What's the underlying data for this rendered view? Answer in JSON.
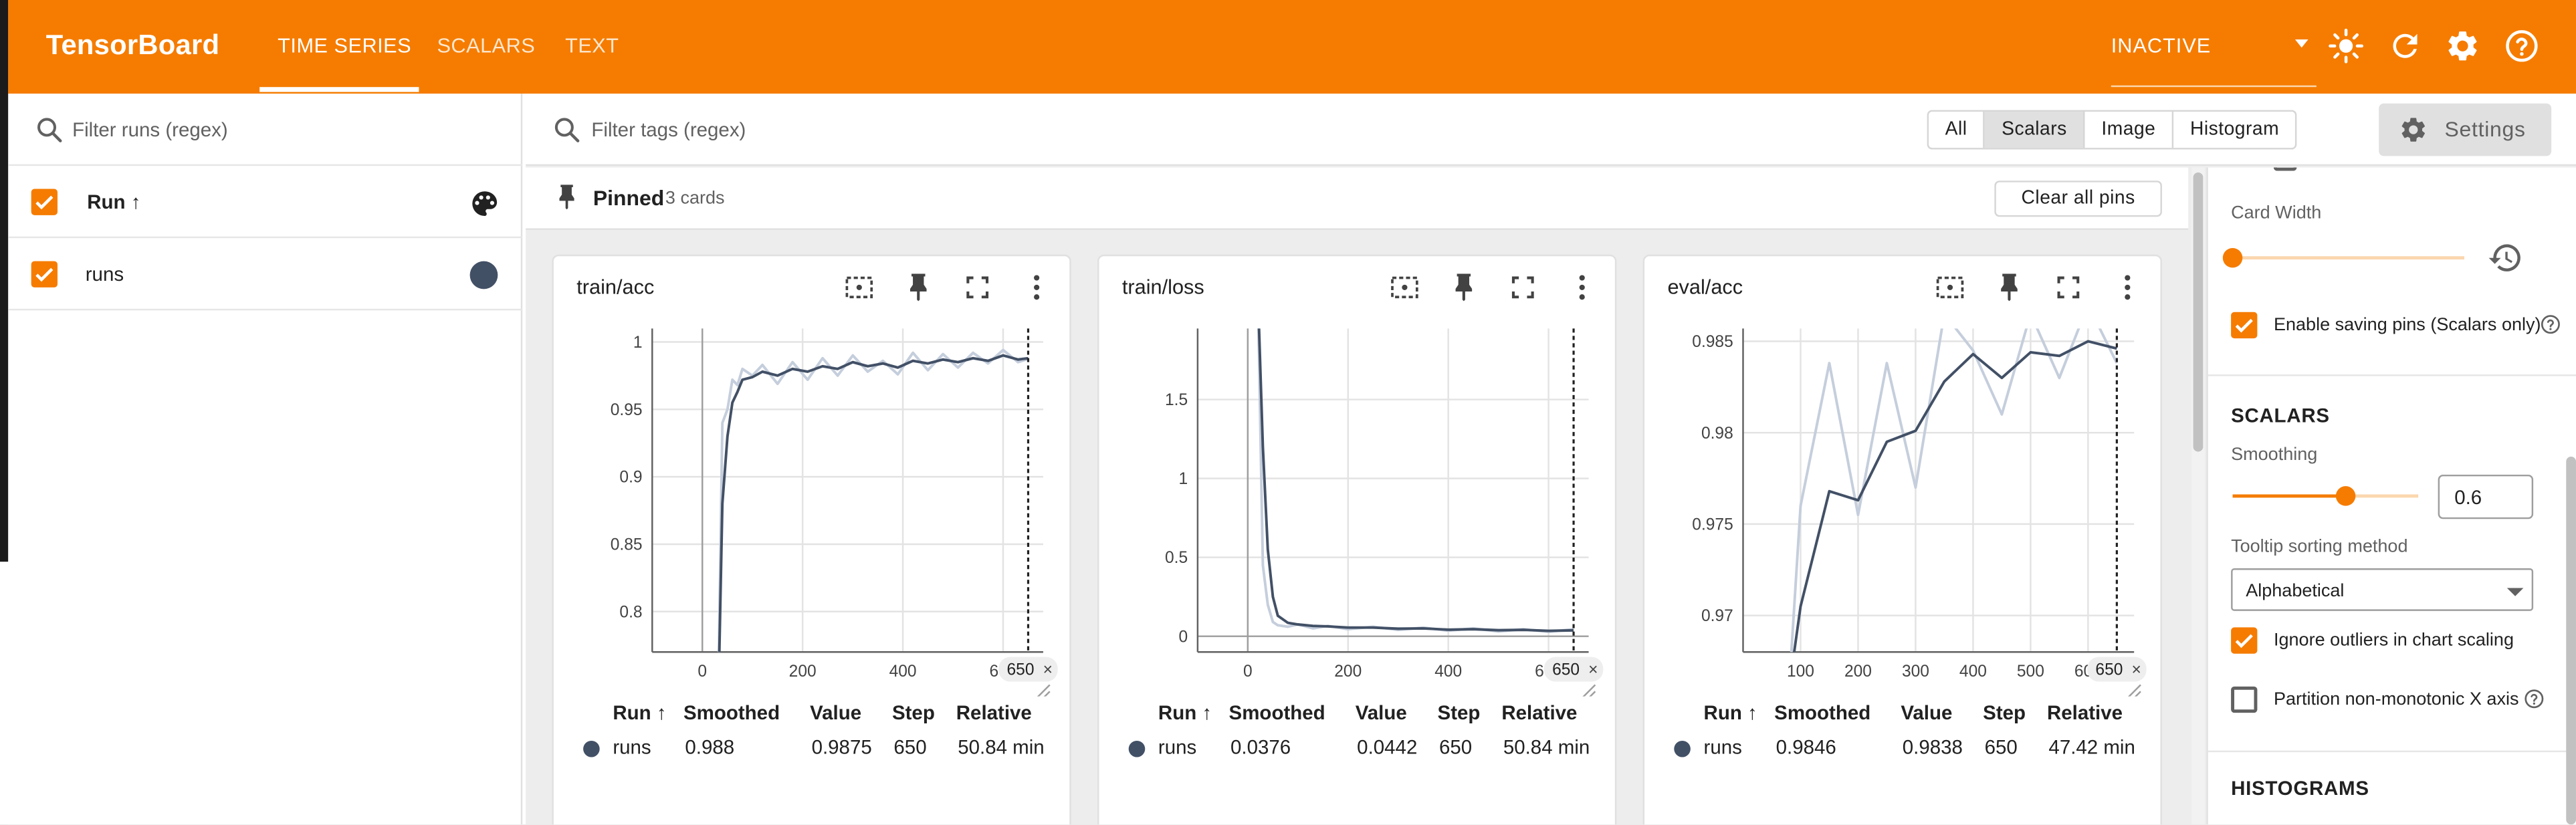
{
  "app": {
    "title": "TensorBoard"
  },
  "nav": {
    "tabs": [
      "TIME SERIES",
      "SCALARS",
      "TEXT"
    ],
    "active": "TIME SERIES"
  },
  "header": {
    "status_label": "INACTIVE"
  },
  "sidebar": {
    "filter_placeholder": "Filter runs (regex)",
    "header_label": "Run ↑",
    "runs": [
      {
        "name": "runs",
        "color": "#425066",
        "checked": true
      }
    ]
  },
  "toolbar": {
    "tag_filter_placeholder": "Filter tags (regex)",
    "type_filters": [
      "All",
      "Scalars",
      "Image",
      "Histogram"
    ],
    "type_selected": "Scalars",
    "settings_label": "Settings"
  },
  "pinned": {
    "label": "Pinned",
    "count_label": "3 cards",
    "clear_label": "Clear all pins"
  },
  "table_headers": {
    "run": "Run ↑",
    "smoothed": "Smoothed",
    "value": "Value",
    "step": "Step",
    "relative": "Relative"
  },
  "cards": [
    {
      "title": "train/acc",
      "row": {
        "run": "runs",
        "smoothed": "0.988",
        "value": "0.9875",
        "step": "650",
        "relative": "50.84 min"
      }
    },
    {
      "title": "train/loss",
      "row": {
        "run": "runs",
        "smoothed": "0.0376",
        "value": "0.0442",
        "step": "650",
        "relative": "50.84 min"
      }
    },
    {
      "title": "eval/acc",
      "row": {
        "run": "runs",
        "smoothed": "0.9846",
        "value": "0.9838",
        "step": "650",
        "relative": "47.42 min"
      }
    }
  ],
  "chart_data": [
    {
      "type": "line",
      "title": "train/acc",
      "x_ticks": [
        "0",
        "200",
        "400",
        "600"
      ],
      "y_ticks": [
        "0.8",
        "0.85",
        "0.9",
        "0.95",
        "1"
      ],
      "xlim": [
        -100,
        680
      ],
      "ylim": [
        0.77,
        1.01
      ],
      "cursor_step": "650",
      "series": [
        {
          "name": "runs (raw)",
          "x": [
            30,
            40,
            50,
            60,
            70,
            80,
            100,
            120,
            150,
            180,
            210,
            240,
            270,
            300,
            330,
            360,
            390,
            420,
            450,
            480,
            510,
            540,
            570,
            600,
            630,
            650
          ],
          "values": [
            0.7,
            0.94,
            0.95,
            0.972,
            0.968,
            0.98,
            0.975,
            0.983,
            0.969,
            0.985,
            0.972,
            0.988,
            0.975,
            0.99,
            0.978,
            0.986,
            0.976,
            0.992,
            0.979,
            0.991,
            0.981,
            0.992,
            0.984,
            0.994,
            0.985,
            0.9875
          ]
        },
        {
          "name": "runs (smoothed)",
          "x": [
            30,
            40,
            50,
            60,
            70,
            80,
            100,
            120,
            150,
            180,
            210,
            240,
            270,
            300,
            330,
            360,
            390,
            420,
            450,
            480,
            510,
            540,
            570,
            600,
            630,
            650
          ],
          "values": [
            0.7,
            0.88,
            0.93,
            0.955,
            0.963,
            0.972,
            0.974,
            0.978,
            0.975,
            0.98,
            0.978,
            0.982,
            0.98,
            0.985,
            0.982,
            0.984,
            0.981,
            0.986,
            0.984,
            0.987,
            0.985,
            0.988,
            0.986,
            0.99,
            0.987,
            0.988
          ]
        }
      ]
    },
    {
      "type": "line",
      "title": "train/loss",
      "x_ticks": [
        "0",
        "200",
        "400",
        "600"
      ],
      "y_ticks": [
        "0",
        "0.5",
        "1",
        "1.5"
      ],
      "xlim": [
        -100,
        680
      ],
      "ylim": [
        -0.1,
        1.95
      ],
      "cursor_step": "650",
      "series": [
        {
          "name": "runs (raw)",
          "x": [
            20,
            30,
            40,
            50,
            60,
            80,
            100,
            130,
            160,
            200,
            250,
            300,
            350,
            400,
            450,
            500,
            550,
            600,
            650
          ],
          "values": [
            2.2,
            0.45,
            0.2,
            0.09,
            0.07,
            0.06,
            0.075,
            0.05,
            0.065,
            0.045,
            0.06,
            0.04,
            0.055,
            0.035,
            0.05,
            0.03,
            0.045,
            0.028,
            0.0442
          ]
        },
        {
          "name": "runs (smoothed)",
          "x": [
            20,
            30,
            40,
            50,
            60,
            80,
            100,
            130,
            160,
            200,
            250,
            300,
            350,
            400,
            450,
            500,
            550,
            600,
            650
          ],
          "values": [
            2.2,
            1.2,
            0.55,
            0.25,
            0.13,
            0.085,
            0.075,
            0.065,
            0.062,
            0.055,
            0.055,
            0.048,
            0.05,
            0.042,
            0.045,
            0.038,
            0.04,
            0.034,
            0.0376
          ]
        }
      ]
    },
    {
      "type": "line",
      "title": "eval/acc",
      "x_ticks": [
        "100",
        "200",
        "300",
        "400",
        "500",
        "600"
      ],
      "y_ticks": [
        "0.97",
        "0.975",
        "0.98",
        "0.985"
      ],
      "xlim": [
        0,
        680
      ],
      "ylim": [
        0.968,
        0.9857
      ],
      "cursor_step": "650",
      "series": [
        {
          "name": "runs (raw)",
          "x": [
            80,
            100,
            150,
            200,
            250,
            300,
            350,
            400,
            450,
            500,
            550,
            600,
            650
          ],
          "values": [
            0.966,
            0.976,
            0.9838,
            0.9755,
            0.9838,
            0.977,
            0.9865,
            0.9845,
            0.981,
            0.9865,
            0.983,
            0.987,
            0.9838
          ]
        },
        {
          "name": "runs (smoothed)",
          "x": [
            80,
            100,
            150,
            200,
            250,
            300,
            350,
            400,
            450,
            500,
            550,
            600,
            650
          ],
          "values": [
            0.966,
            0.9705,
            0.9768,
            0.9763,
            0.9795,
            0.9801,
            0.9828,
            0.9843,
            0.983,
            0.9844,
            0.9842,
            0.985,
            0.9846
          ]
        }
      ]
    }
  ],
  "settings": {
    "card_width_label": "Card Width",
    "enable_pins_label": "Enable saving pins (Scalars only)",
    "scalars_heading": "SCALARS",
    "smoothing_label": "Smoothing",
    "smoothing_value": "0.6",
    "smoothing_fraction": 0.6,
    "card_width_fraction": 0.0,
    "tooltip_label": "Tooltip sorting method",
    "tooltip_value": "Alphabetical",
    "ignore_outliers_label": "Ignore outliers in chart scaling",
    "partition_label": "Partition non-monotonic X axis",
    "histograms_heading": "HISTOGRAMS"
  },
  "colors": {
    "accent": "#f57c00",
    "run": "#425066",
    "raw_line": "#c5cedc"
  }
}
